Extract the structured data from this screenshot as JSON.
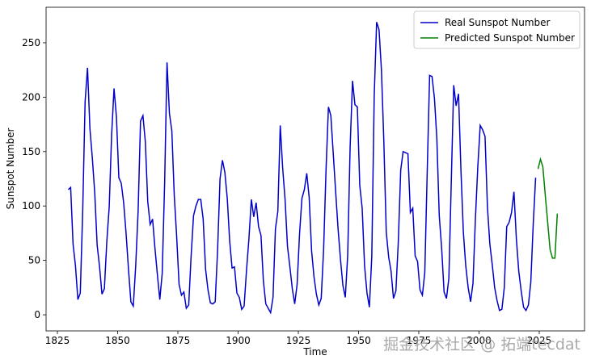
{
  "chart_data": {
    "type": "line",
    "xlabel": "Time",
    "ylabel": "Sunspot Number",
    "xlim": [
      1820.3,
      2043.8
    ],
    "ylim": [
      -14.8,
      282.6
    ],
    "xticks": [
      1825,
      1850,
      1875,
      1900,
      1925,
      1950,
      1975,
      2000,
      2025
    ],
    "yticks": [
      0,
      50,
      100,
      150,
      200,
      250
    ],
    "legend": "upper right",
    "watermark": "掘金技术社区 @ 拓端tecdat",
    "series": [
      {
        "name": "Real Sunspot Number",
        "color": "#0000cc",
        "x": [
          1829.5,
          1830.5,
          1831.5,
          1832.5,
          1833.5,
          1834.5,
          1835.5,
          1836.5,
          1837.5,
          1838.5,
          1839.5,
          1840.5,
          1841.5,
          1842.5,
          1843.5,
          1844.5,
          1845.5,
          1846.5,
          1847.5,
          1848.5,
          1849.5,
          1850.5,
          1851.5,
          1852.5,
          1853.5,
          1854.5,
          1855.5,
          1856.5,
          1857.5,
          1858.5,
          1859.5,
          1860.5,
          1861.5,
          1862.5,
          1863.5,
          1864.5,
          1865.5,
          1866.5,
          1867.5,
          1868.5,
          1869.5,
          1870.5,
          1871.5,
          1872.5,
          1873.5,
          1874.5,
          1875.5,
          1876.5,
          1877.5,
          1878.5,
          1879.5,
          1880.5,
          1881.5,
          1882.5,
          1883.5,
          1884.5,
          1885.5,
          1886.5,
          1887.5,
          1888.5,
          1889.5,
          1890.5,
          1891.5,
          1892.5,
          1893.5,
          1894.5,
          1895.5,
          1896.5,
          1897.5,
          1898.5,
          1899.5,
          1900.5,
          1901.5,
          1902.5,
          1903.5,
          1904.5,
          1905.5,
          1906.5,
          1907.5,
          1908.5,
          1909.5,
          1910.5,
          1911.5,
          1912.5,
          1913.5,
          1914.5,
          1915.5,
          1916.5,
          1917.5,
          1918.5,
          1919.5,
          1920.5,
          1921.5,
          1922.5,
          1923.5,
          1924.5,
          1925.5,
          1926.5,
          1927.5,
          1928.5,
          1929.5,
          1930.5,
          1931.5,
          1932.5,
          1933.5,
          1934.5,
          1935.5,
          1936.5,
          1937.5,
          1938.5,
          1939.5,
          1940.5,
          1941.5,
          1942.5,
          1943.5,
          1944.5,
          1945.5,
          1946.5,
          1947.5,
          1948.5,
          1949.5,
          1950.5,
          1951.5,
          1952.5,
          1953.5,
          1954.5,
          1955.5,
          1956.5,
          1957.5,
          1958.5,
          1959.5,
          1960.5,
          1961.5,
          1962.5,
          1963.5,
          1964.5,
          1965.5,
          1966.5,
          1967.5,
          1968.5,
          1969.5,
          1970.5,
          1971.5,
          1972.5,
          1973.5,
          1974.5,
          1975.5,
          1976.5,
          1977.5,
          1978.5,
          1979.5,
          1980.5,
          1981.5,
          1982.5,
          1983.5,
          1984.5,
          1985.5,
          1986.5,
          1987.5,
          1988.5,
          1989.5,
          1990.5,
          1991.5,
          1992.5,
          1993.5,
          1994.5,
          1995.5,
          1996.5,
          1997.5,
          1998.5,
          1999.5,
          2000.5,
          2001.5,
          2002.5,
          2003.5,
          2004.5,
          2005.5,
          2006.5,
          2007.5,
          2008.5,
          2009.5,
          2010.5,
          2011.5,
          2012.5,
          2013.5,
          2014.5,
          2015.5,
          2016.5,
          2017.5,
          2018.5,
          2019.5,
          2020.5,
          2021.5,
          2022.5,
          2023.5
        ],
        "values": [
          115,
          117,
          65,
          45,
          14,
          20,
          95,
          196,
          227,
          171,
          144,
          112,
          64,
          44,
          19,
          24,
          67,
          99,
          165,
          208,
          182,
          126,
          121,
          103,
          75,
          42,
          12,
          8,
          45,
          95,
          178,
          183,
          159,
          104,
          83,
          88,
          61,
          37,
          14,
          38,
          120,
          232,
          185,
          169,
          110,
          72,
          28,
          18,
          21,
          6,
          9,
          54,
          91,
          100,
          106,
          106,
          88,
          42,
          23,
          11,
          10,
          12,
          60,
          125,
          142,
          131,
          107,
          68,
          43,
          44,
          20,
          16,
          5,
          8,
          41,
          70,
          106,
          90,
          103,
          81,
          73,
          31,
          10,
          6,
          2,
          16,
          79,
          95,
          174,
          135,
          106,
          63,
          44,
          24,
          10,
          28,
          74,
          107,
          115,
          130,
          108,
          59,
          35,
          19,
          9,
          15,
          60,
          133,
          191,
          183,
          148,
          113,
          79,
          51,
          27,
          16,
          55,
          154,
          215,
          193,
          191,
          119,
          98,
          45,
          20,
          7,
          54,
          201,
          269,
          262,
          225,
          159,
          76,
          53,
          40,
          15,
          22,
          67,
          133,
          150,
          149,
          148,
          94,
          98,
          54,
          49,
          23,
          18,
          39,
          131,
          220,
          219,
          199,
          162,
          91,
          61,
          21,
          15,
          34,
          123,
          211,
          192,
          203,
          133,
          76,
          45,
          25,
          12,
          29,
          88,
          136,
          174,
          170,
          164,
          99,
          65,
          46,
          25,
          13,
          4,
          5,
          25,
          81,
          85,
          94,
          113,
          70,
          40,
          22,
          7,
          4,
          9,
          30,
          83,
          126
        ]
      },
      {
        "name": "Predicted Sunspot Number",
        "color": "#008000",
        "x": [
          2024.5,
          2025.5,
          2026.5,
          2027.5,
          2028.5,
          2029.5,
          2030.5,
          2031.5,
          2032.5
        ],
        "values": [
          134,
          143,
          136,
          110,
          85,
          60,
          52,
          52,
          93
        ]
      }
    ]
  }
}
